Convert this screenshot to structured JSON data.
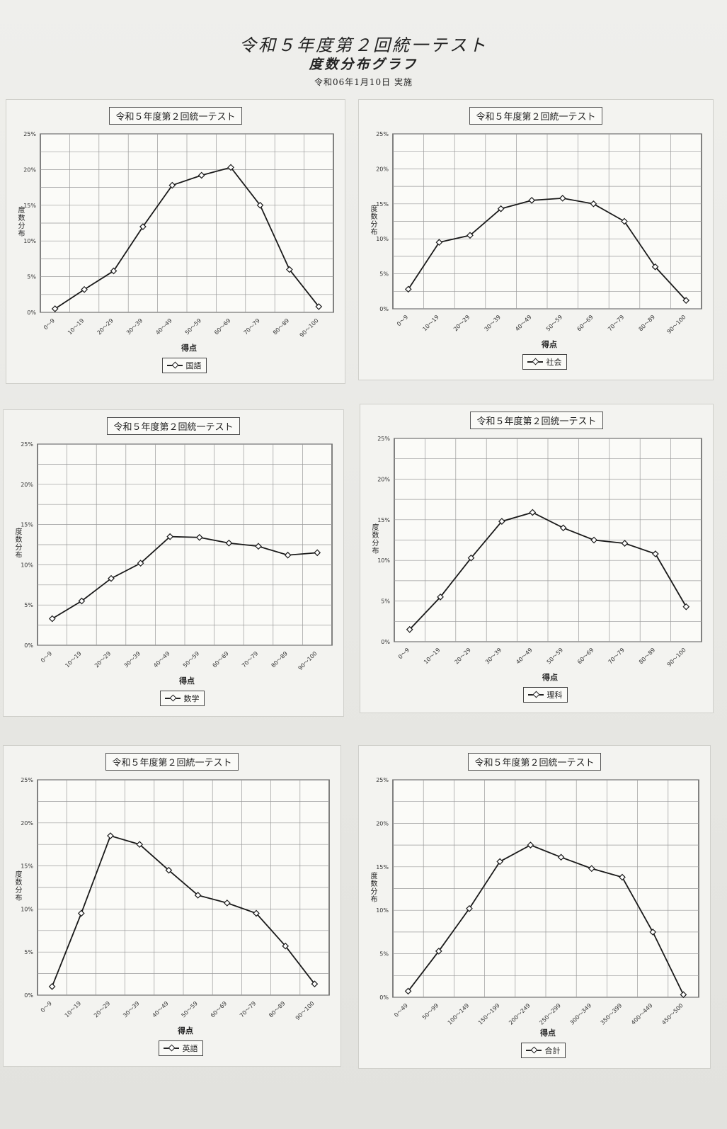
{
  "header": {
    "title": "令和５年度第２回統一テスト",
    "subtitle": "度数分布グラフ",
    "date": "令和06年1月10日 実施"
  },
  "colors": {
    "line": "#1a1a1a",
    "grid": "#9a9a9a",
    "marker_fill": "#ffffff"
  },
  "chart_data": [
    {
      "type": "line",
      "title": "令和５年度第２回統一テスト",
      "xlabel": "得点",
      "ylabel": "度数分布",
      "categories": [
        "0～9",
        "10～19",
        "20～29",
        "30～39",
        "40～49",
        "50～59",
        "60～69",
        "70～79",
        "80～89",
        "90～100"
      ],
      "yticks": [
        "0%",
        "5%",
        "10%",
        "15%",
        "20%",
        "25%"
      ],
      "ylim": [
        0,
        25
      ],
      "grid": true,
      "legend_position": "bottom",
      "series": [
        {
          "name": "国語",
          "values": [
            0.5,
            3.2,
            5.8,
            12.0,
            17.8,
            19.2,
            20.3,
            15.0,
            6.0,
            0.8
          ]
        }
      ]
    },
    {
      "type": "line",
      "title": "令和５年度第２回統一テスト",
      "xlabel": "得点",
      "ylabel": "度数分布",
      "categories": [
        "0～9",
        "10～19",
        "20～29",
        "30～39",
        "40～49",
        "50～59",
        "60～69",
        "70～79",
        "80～89",
        "90～100"
      ],
      "yticks": [
        "0%",
        "5%",
        "10%",
        "15%",
        "20%",
        "25%"
      ],
      "ylim": [
        0,
        25
      ],
      "grid": true,
      "legend_position": "bottom",
      "series": [
        {
          "name": "社会",
          "values": [
            2.8,
            9.5,
            10.5,
            14.3,
            15.5,
            15.8,
            15.0,
            12.5,
            6.0,
            1.2
          ]
        }
      ]
    },
    {
      "type": "line",
      "title": "令和５年度第２回統一テスト",
      "xlabel": "得点",
      "ylabel": "度数分布",
      "categories": [
        "0～9",
        "10～19",
        "20～29",
        "30～39",
        "40～49",
        "50～59",
        "60～69",
        "70～79",
        "80～89",
        "90～100"
      ],
      "yticks": [
        "0%",
        "5%",
        "10%",
        "15%",
        "20%",
        "25%"
      ],
      "ylim": [
        0,
        25
      ],
      "grid": true,
      "legend_position": "bottom",
      "series": [
        {
          "name": "数学",
          "values": [
            3.3,
            5.5,
            8.3,
            10.2,
            13.5,
            13.4,
            12.7,
            12.3,
            11.2,
            11.5
          ]
        }
      ]
    },
    {
      "type": "line",
      "title": "令和５年度第２回統一テスト",
      "xlabel": "得点",
      "ylabel": "度数分布",
      "categories": [
        "0～9",
        "10～19",
        "20～29",
        "30～39",
        "40～49",
        "50～59",
        "60～69",
        "70～79",
        "80～89",
        "90～100"
      ],
      "yticks": [
        "0%",
        "5%",
        "10%",
        "15%",
        "20%",
        "25%"
      ],
      "ylim": [
        0,
        25
      ],
      "grid": true,
      "legend_position": "bottom",
      "series": [
        {
          "name": "理科",
          "values": [
            1.5,
            5.5,
            10.3,
            14.8,
            15.9,
            14.0,
            12.5,
            12.1,
            10.8,
            4.3
          ]
        }
      ]
    },
    {
      "type": "line",
      "title": "令和５年度第２回統一テスト",
      "xlabel": "得点",
      "ylabel": "度数分布",
      "categories": [
        "0～9",
        "10～19",
        "20～29",
        "30～39",
        "40～49",
        "50～59",
        "60～69",
        "70～79",
        "80～89",
        "90～100"
      ],
      "yticks": [
        "0%",
        "5%",
        "10%",
        "15%",
        "20%",
        "25%"
      ],
      "ylim": [
        0,
        25
      ],
      "grid": true,
      "legend_position": "bottom",
      "series": [
        {
          "name": "英語",
          "values": [
            1.0,
            9.5,
            18.5,
            17.5,
            14.5,
            11.6,
            10.7,
            9.5,
            5.7,
            1.3
          ]
        }
      ]
    },
    {
      "type": "line",
      "title": "令和５年度第２回統一テスト",
      "xlabel": "得点",
      "ylabel": "度数分布",
      "categories": [
        "0～49",
        "50～99",
        "100～149",
        "150～199",
        "200～249",
        "250～299",
        "300～349",
        "350～399",
        "400～449",
        "450～500"
      ],
      "yticks": [
        "0%",
        "5%",
        "10%",
        "15%",
        "20%",
        "25%"
      ],
      "ylim": [
        0,
        25
      ],
      "grid": true,
      "legend_position": "bottom",
      "series": [
        {
          "name": "合計",
          "values": [
            0.7,
            5.3,
            10.2,
            15.6,
            17.5,
            16.1,
            14.8,
            13.8,
            7.5,
            0.3
          ]
        }
      ]
    }
  ]
}
